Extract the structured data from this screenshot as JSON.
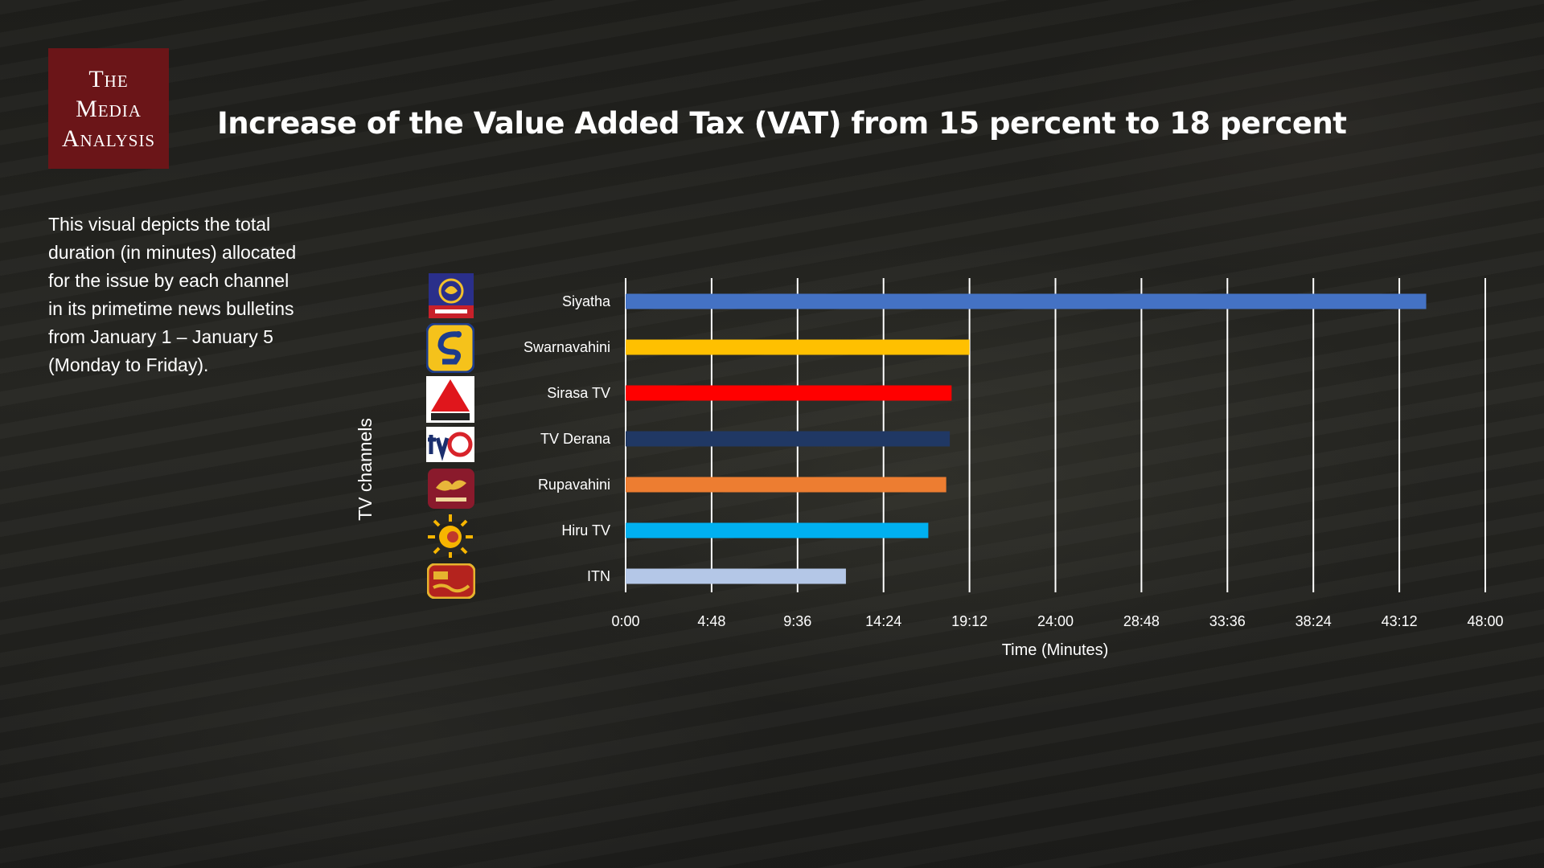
{
  "brand": {
    "logo_lines": [
      "The",
      "Media",
      "Analysis"
    ],
    "logo_color": "#6b1518"
  },
  "title": "Increase of the Value Added Tax (VAT) from 15 percent to 18 percent",
  "description": "This visual depicts the total duration  (in minutes) allocated for the issue by each channel in its primetime news bulletins from January 1 – January 5 (Monday to Friday).",
  "channel_icons": [
    "siyatha-tv-logo-icon",
    "swarnavahini-logo-icon",
    "sirasa-tv-logo-icon",
    "tv-derana-logo-icon",
    "rupavahini-logo-icon",
    "hiru-tv-logo-icon",
    "itn-logo-icon"
  ],
  "chart_data": {
    "type": "bar",
    "orientation": "horizontal",
    "title": "",
    "xlabel": "Time (Minutes)",
    "ylabel": "TV channels",
    "categories": [
      "Siyatha",
      "Swarnavahini",
      "Sirasa TV",
      "TV Derana",
      "Rupavahini",
      "Hiru TV",
      "ITN"
    ],
    "values": [
      44.7,
      19.2,
      18.2,
      18.1,
      17.9,
      16.9,
      12.3
    ],
    "colors": [
      "#4472c4",
      "#ffc000",
      "#ff0000",
      "#203864",
      "#ed7d31",
      "#00b0f0",
      "#b4c7e7"
    ],
    "xlim": [
      0,
      48
    ],
    "xticks": [
      0,
      4.8,
      9.6,
      14.4,
      19.2,
      24,
      28.8,
      33.6,
      38.4,
      43.2,
      48
    ],
    "xtick_labels": [
      "0:00",
      "4:48",
      "9:36",
      "14:24",
      "19:12",
      "24:00",
      "28:48",
      "33:36",
      "38:24",
      "43:12",
      "48:00"
    ],
    "grid": true,
    "legend": "none"
  }
}
